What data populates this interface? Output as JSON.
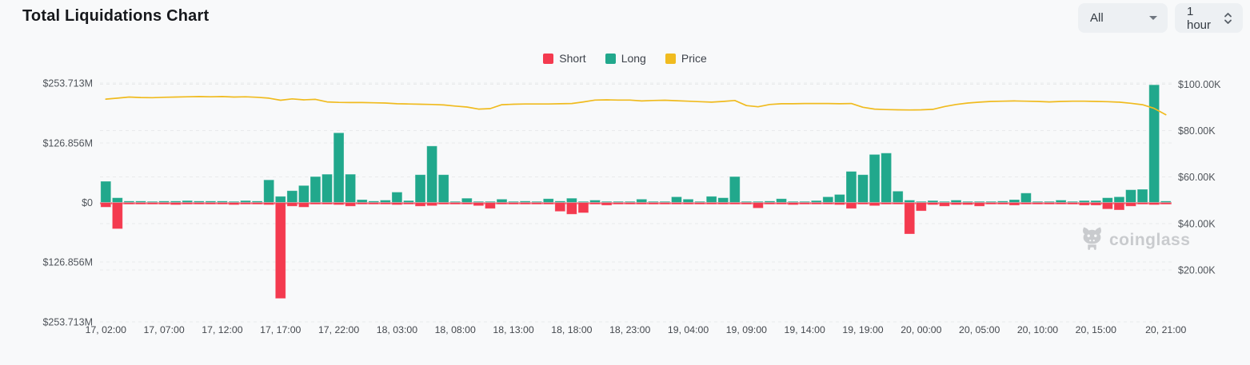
{
  "header": {
    "title": "Total Liquidations Chart",
    "coin_filter": {
      "value": "All"
    },
    "interval": {
      "value": "1 hour"
    }
  },
  "legend": [
    {
      "label": "Short",
      "color": "#f43a4f"
    },
    {
      "label": "Long",
      "color": "#21a88c"
    },
    {
      "label": "Price",
      "color": "#f0bb1f"
    }
  ],
  "watermark": {
    "text": "coinglass"
  },
  "chart_data": {
    "type": "bar",
    "title": "Total Liquidations Chart",
    "units": {
      "liquidations": "USD millions",
      "price": "USD thousands"
    },
    "grid": true,
    "legend_position": "top-center",
    "left_axis": {
      "title": "Liquidations (Long up / Short down)",
      "max": 253.713,
      "labels": [
        {
          "v": 253.713,
          "text": "$253.713M"
        },
        {
          "v": 126.856,
          "text": "$126.856M"
        },
        {
          "v": 0,
          "text": "$0"
        },
        {
          "v": -126.856,
          "text": "$126.856M"
        },
        {
          "v": -253.713,
          "text": "$253.713M"
        }
      ]
    },
    "right_axis": {
      "title": "Price",
      "labels": [
        {
          "v": 100,
          "text": "$100.00K"
        },
        {
          "v": 80,
          "text": "$80.00K"
        },
        {
          "v": 60,
          "text": "$60.00K"
        },
        {
          "v": 40,
          "text": "$40.00K"
        },
        {
          "v": 20,
          "text": "$20.00K"
        }
      ]
    },
    "categories": [
      "17, 02:00",
      "17, 03:00",
      "17, 04:00",
      "17, 05:00",
      "17, 06:00",
      "17, 07:00",
      "17, 08:00",
      "17, 09:00",
      "17, 10:00",
      "17, 11:00",
      "17, 12:00",
      "17, 13:00",
      "17, 14:00",
      "17, 15:00",
      "17, 16:00",
      "17, 17:00",
      "17, 18:00",
      "17, 19:00",
      "17, 20:00",
      "17, 21:00",
      "17, 22:00",
      "17, 23:00",
      "18, 00:00",
      "18, 01:00",
      "18, 02:00",
      "18, 03:00",
      "18, 04:00",
      "18, 05:00",
      "18, 06:00",
      "18, 07:00",
      "18, 08:00",
      "18, 09:00",
      "18, 10:00",
      "18, 11:00",
      "18, 12:00",
      "18, 13:00",
      "18, 14:00",
      "18, 15:00",
      "18, 16:00",
      "18, 17:00",
      "18, 18:00",
      "18, 19:00",
      "18, 20:00",
      "18, 21:00",
      "18, 22:00",
      "18, 23:00",
      "19, 00:00",
      "19, 01:00",
      "19, 02:00",
      "19, 03:00",
      "19, 04:00",
      "19, 05:00",
      "19, 06:00",
      "19, 07:00",
      "19, 08:00",
      "19, 09:00",
      "19, 10:00",
      "19, 11:00",
      "19, 12:00",
      "19, 13:00",
      "19, 14:00",
      "19, 15:00",
      "19, 16:00",
      "19, 17:00",
      "19, 18:00",
      "19, 19:00",
      "19, 20:00",
      "19, 21:00",
      "19, 22:00",
      "19, 23:00",
      "20, 00:00",
      "20, 01:00",
      "20, 02:00",
      "20, 03:00",
      "20, 04:00",
      "20, 05:00",
      "20, 06:00",
      "20, 07:00",
      "20, 08:00",
      "20, 09:00",
      "20, 10:00",
      "20, 11:00",
      "20, 12:00",
      "20, 13:00",
      "20, 14:00",
      "20, 15:00",
      "20, 16:00",
      "20, 17:00",
      "20, 18:00",
      "20, 19:00",
      "20, 20:00",
      "20, 21:00"
    ],
    "series": [
      {
        "name": "Short",
        "type": "bar",
        "direction": "down",
        "color": "#f43a4f",
        "values": [
          10,
          56,
          3,
          3,
          3,
          4,
          5,
          3,
          2,
          2,
          3,
          5,
          3,
          4,
          5,
          204,
          8,
          10,
          4,
          4,
          5,
          8,
          3,
          2,
          2,
          5,
          2,
          8,
          7,
          4,
          1,
          2,
          7,
          13,
          2,
          3,
          2,
          2,
          2,
          19,
          25,
          22,
          2,
          6,
          2,
          2,
          2,
          4,
          1,
          2,
          3,
          3,
          2,
          2,
          3,
          3,
          12,
          3,
          2,
          5,
          3,
          2,
          2,
          5,
          13,
          4,
          7,
          4,
          3,
          67,
          18,
          5,
          8,
          5,
          5,
          8,
          2,
          4,
          6,
          3,
          3,
          1,
          2,
          4,
          6,
          6,
          14,
          16,
          8,
          4,
          5,
          2
        ]
      },
      {
        "name": "Long",
        "type": "bar",
        "direction": "up",
        "color": "#21a88c",
        "values": [
          45,
          10,
          3,
          3,
          2,
          3,
          3,
          4,
          3,
          3,
          3,
          2,
          4,
          3,
          48,
          13,
          25,
          36,
          55,
          60,
          148,
          60,
          6,
          3,
          5,
          22,
          4,
          59,
          120,
          59,
          2,
          9,
          2,
          1,
          7,
          2,
          3,
          2,
          8,
          3,
          9,
          2,
          5,
          2,
          2,
          2,
          7,
          2,
          1,
          12,
          7,
          2,
          13,
          10,
          55,
          2,
          2,
          3,
          8,
          2,
          1,
          4,
          12,
          17,
          66,
          59,
          102,
          105,
          24,
          5,
          2,
          4,
          2,
          5,
          2,
          2,
          1,
          3,
          6,
          20,
          2,
          1,
          5,
          2,
          4,
          4,
          10,
          12,
          27,
          28,
          250,
          3
        ]
      },
      {
        "name": "Price",
        "type": "line",
        "axis": "right",
        "color": "#f0bb1f",
        "values": [
          93.6,
          94.0,
          94.5,
          94.3,
          94.2,
          94.4,
          94.5,
          94.6,
          94.7,
          94.6,
          94.7,
          94.5,
          94.6,
          94.4,
          94.0,
          93.1,
          93.7,
          93.3,
          93.5,
          92.4,
          92.2,
          92.1,
          92.1,
          92.0,
          91.9,
          91.6,
          91.5,
          91.4,
          91.3,
          91.1,
          90.6,
          90.2,
          89.3,
          89.5,
          91.2,
          91.4,
          91.5,
          91.5,
          91.5,
          91.6,
          91.7,
          92.4,
          93.2,
          93.3,
          93.2,
          93.2,
          92.8,
          93.0,
          93.1,
          92.9,
          92.7,
          92.5,
          92.3,
          92.6,
          93.0,
          90.8,
          90.3,
          91.3,
          91.6,
          91.6,
          91.7,
          91.7,
          91.7,
          91.6,
          91.7,
          90.1,
          89.3,
          89.1,
          89.0,
          88.9,
          89.0,
          89.2,
          90.4,
          91.3,
          91.9,
          92.3,
          92.6,
          92.7,
          92.8,
          92.7,
          92.6,
          92.4,
          92.6,
          92.7,
          92.7,
          92.6,
          92.5,
          92.3,
          91.8,
          91.2,
          89.6,
          86.9
        ]
      }
    ],
    "x_ticks": [
      {
        "i": 0,
        "label": "17, 02:00"
      },
      {
        "i": 5,
        "label": "17, 07:00"
      },
      {
        "i": 10,
        "label": "17, 12:00"
      },
      {
        "i": 15,
        "label": "17, 17:00"
      },
      {
        "i": 20,
        "label": "17, 22:00"
      },
      {
        "i": 25,
        "label": "18, 03:00"
      },
      {
        "i": 30,
        "label": "18, 08:00"
      },
      {
        "i": 35,
        "label": "18, 13:00"
      },
      {
        "i": 40,
        "label": "18, 18:00"
      },
      {
        "i": 45,
        "label": "18, 23:00"
      },
      {
        "i": 50,
        "label": "19, 04:00"
      },
      {
        "i": 55,
        "label": "19, 09:00"
      },
      {
        "i": 60,
        "label": "19, 14:00"
      },
      {
        "i": 65,
        "label": "19, 19:00"
      },
      {
        "i": 70,
        "label": "20, 00:00"
      },
      {
        "i": 75,
        "label": "20, 05:00"
      },
      {
        "i": 80,
        "label": "20, 10:00"
      },
      {
        "i": 85,
        "label": "20, 15:00"
      },
      {
        "i": 91,
        "label": "20, 21:00"
      }
    ]
  }
}
